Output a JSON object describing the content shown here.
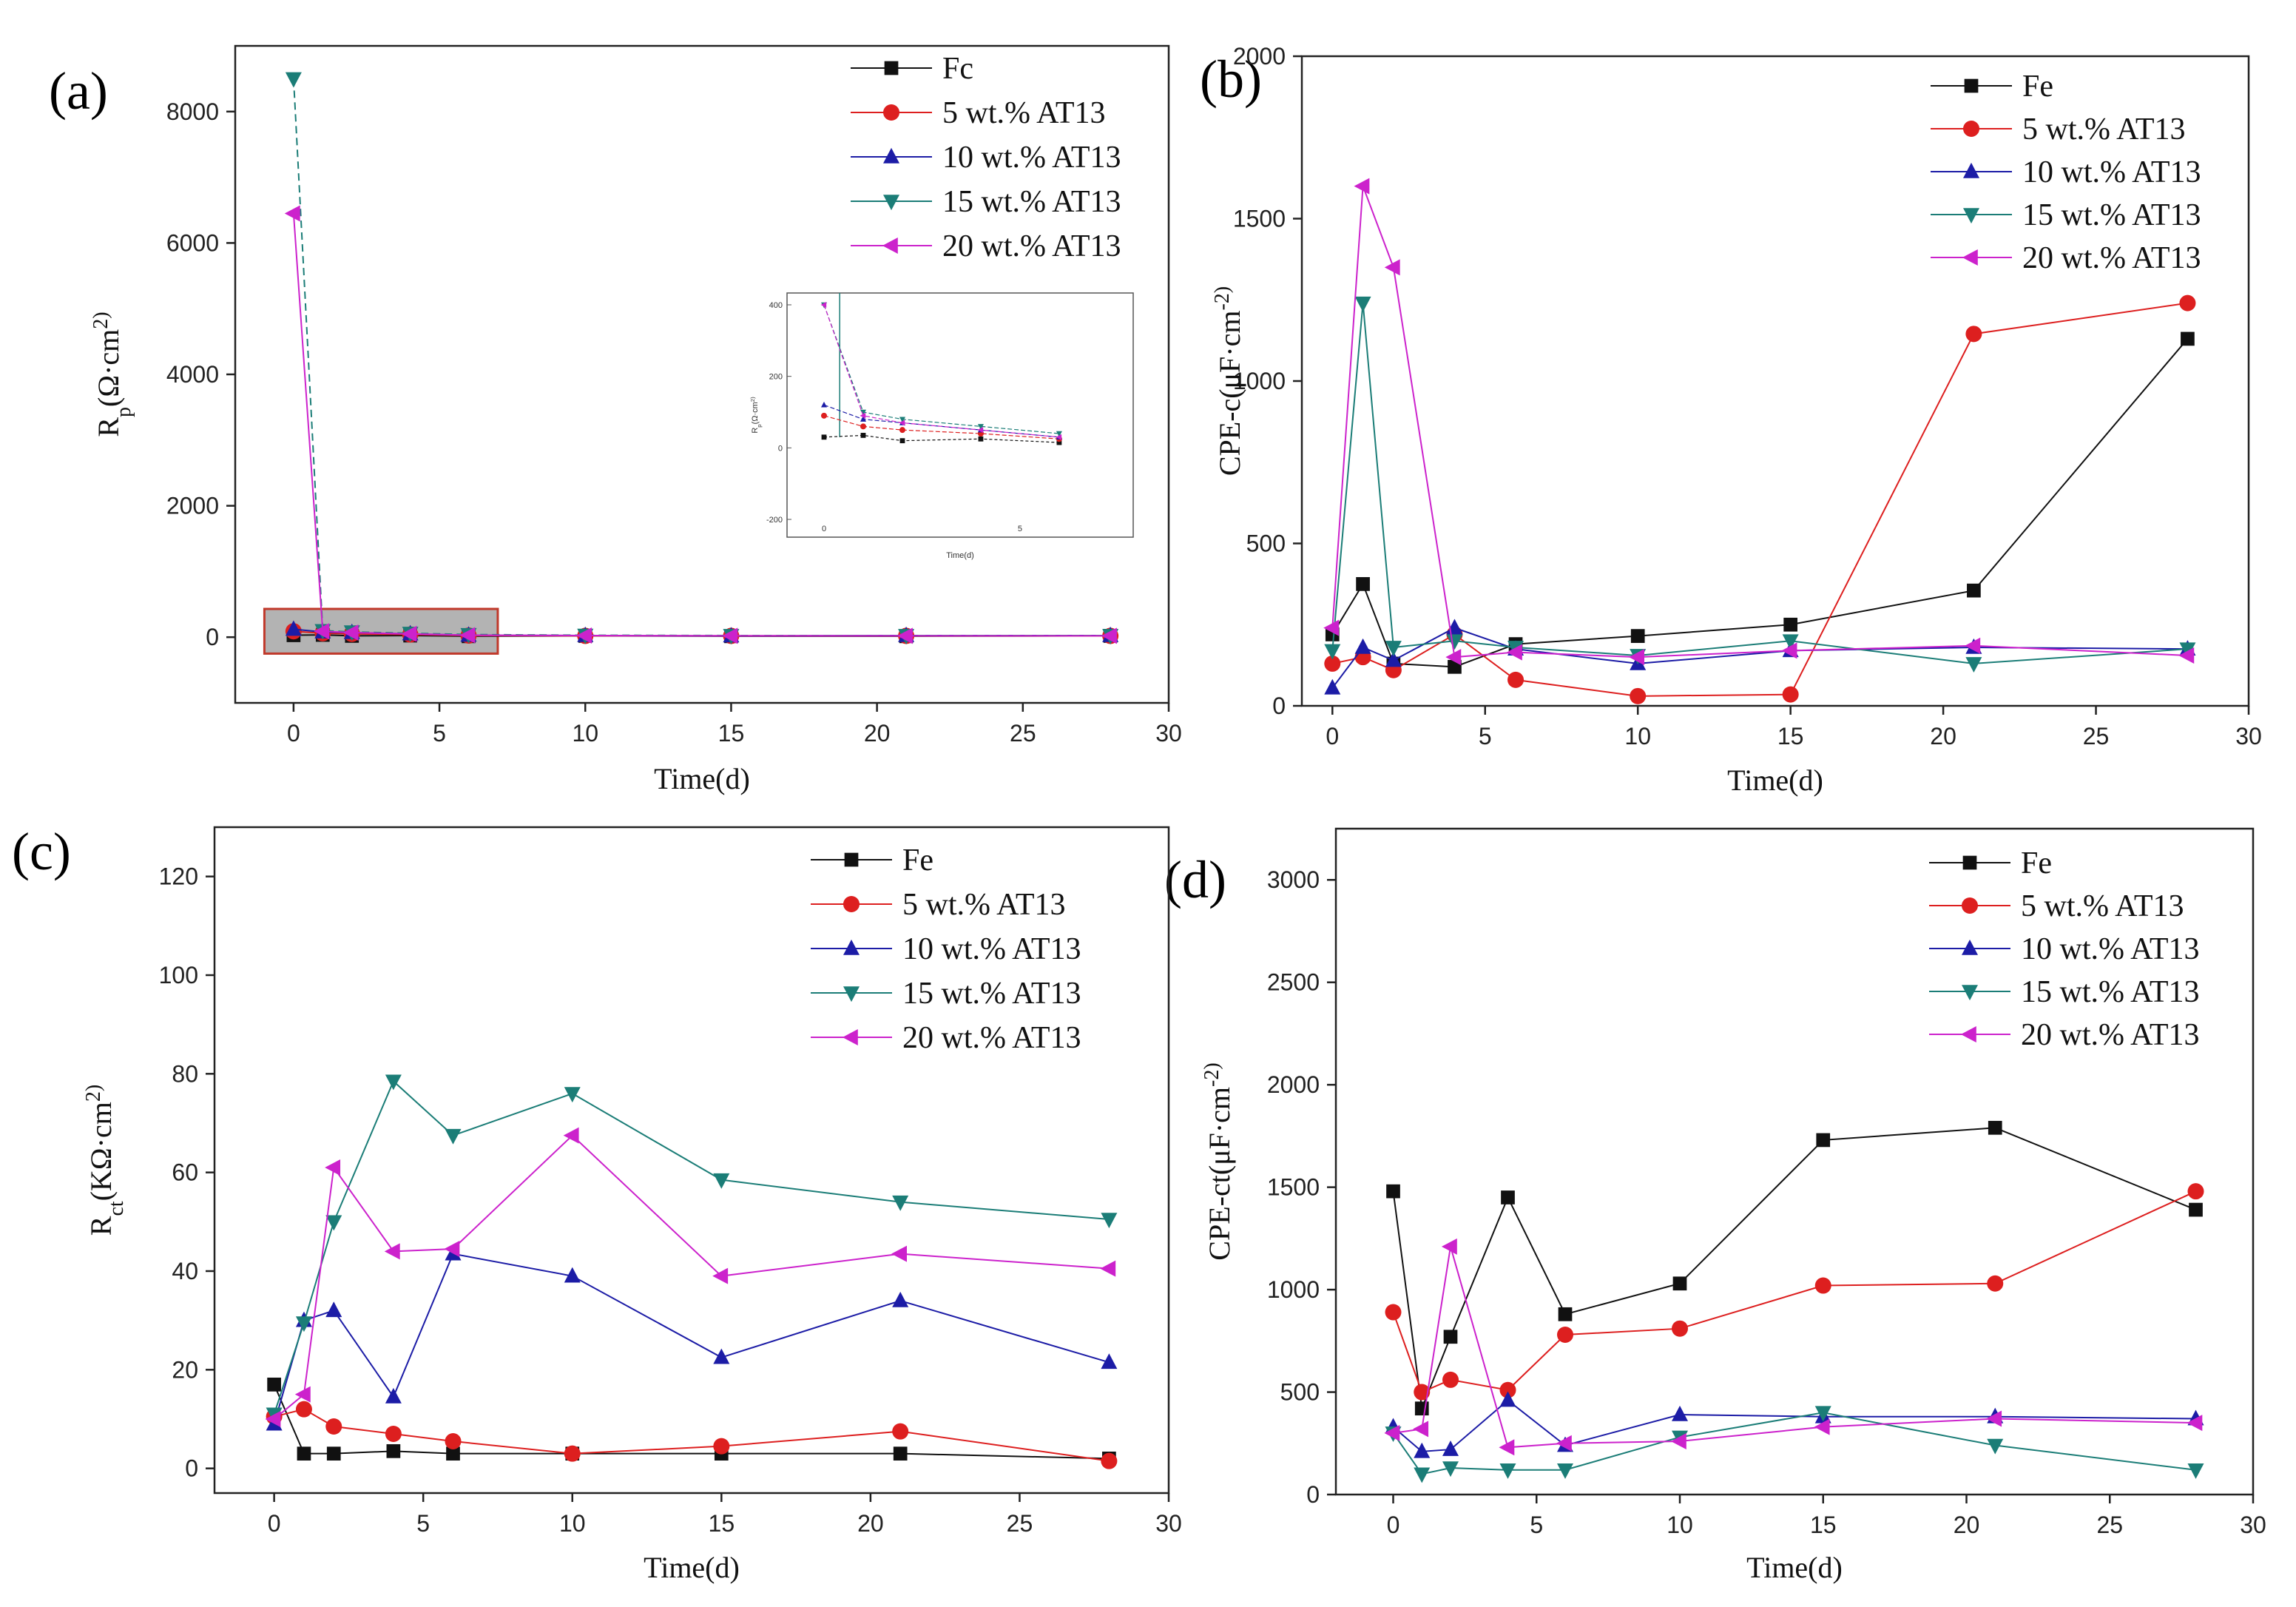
{
  "figure": {
    "panels": [
      {
        "letter": "(a)"
      },
      {
        "letter": "(b)"
      },
      {
        "letter": "(c)"
      },
      {
        "letter": "(d)"
      }
    ]
  },
  "colors": {
    "Fe": "#111111",
    "5": "#dd1f1f",
    "10": "#1c1ca6",
    "15": "#1b7d77",
    "20": "#cc22cc",
    "highlight_fill": "#9a9a9a",
    "highlight_stroke": "#c0392b"
  },
  "chart_data": [
    {
      "id": "a",
      "type": "line",
      "xlabel": "Time(d)",
      "ylabel": "R_p(Ω·cm^2)",
      "xlim": [
        -2,
        30
      ],
      "ylim": [
        -1000,
        9000
      ],
      "xticks": [
        0,
        5,
        10,
        15,
        20,
        25,
        30
      ],
      "yticks": [
        0,
        2000,
        4000,
        6000,
        8000
      ],
      "legend": [
        "Fc",
        "5 wt.% AT13",
        "10 wt.% AT13",
        "15 wt.% AT13",
        "20 wt.% AT13"
      ],
      "series": [
        {
          "key": "Fe",
          "marker": "square",
          "x": [
            0,
            1,
            2,
            4,
            6,
            10,
            15,
            21,
            28
          ],
          "y": [
            30,
            35,
            20,
            25,
            15,
            20,
            15,
            15,
            20
          ]
        },
        {
          "key": "5",
          "marker": "circle",
          "x": [
            0,
            1,
            2,
            4,
            6,
            10,
            15,
            21,
            28
          ],
          "y": [
            90,
            60,
            50,
            40,
            25,
            20,
            20,
            20,
            20
          ]
        },
        {
          "key": "10",
          "marker": "triangle-up",
          "x": [
            0,
            1,
            2,
            4,
            6,
            10,
            15,
            21,
            28
          ],
          "y": [
            120,
            80,
            70,
            50,
            30,
            25,
            20,
            25,
            25
          ]
        },
        {
          "key": "15",
          "marker": "triangle-down",
          "x": [
            0,
            1,
            2,
            4,
            6,
            10,
            15,
            21,
            28
          ],
          "y": [
            8500,
            100,
            80,
            60,
            40,
            30,
            25,
            25,
            25
          ]
        },
        {
          "key": "20",
          "marker": "triangle-left",
          "x": [
            0,
            1,
            2,
            4,
            6,
            10,
            15,
            21,
            28
          ],
          "y": [
            6450,
            90,
            70,
            50,
            30,
            25,
            20,
            20,
            20
          ]
        }
      ],
      "highlight_box": {
        "x": [
          -1,
          7
        ],
        "y": [
          -250,
          430
        ]
      },
      "inset": {
        "xlabel": "Time(d)",
        "ylabel": "R_p(Ω·cm^2)",
        "ytick_labels": [
          "400",
          "200",
          "0",
          "-200"
        ],
        "xtick_labels": [
          "0",
          "5"
        ]
      }
    },
    {
      "id": "b",
      "type": "line",
      "xlabel": "Time(d)",
      "ylabel": "CPE-c(μF·cm^-2)",
      "xlim": [
        -1,
        30
      ],
      "ylim": [
        0,
        2000
      ],
      "xticks": [
        0,
        5,
        10,
        15,
        20,
        25,
        30
      ],
      "yticks": [
        0,
        500,
        1000,
        1500,
        2000
      ],
      "legend": [
        "Fe",
        "5 wt.% AT13",
        "10 wt.% AT13",
        "15 wt.% AT13",
        "20 wt.% AT13"
      ],
      "series": [
        {
          "key": "Fe",
          "marker": "square",
          "x": [
            0,
            1,
            2,
            4,
            6,
            10,
            15,
            21,
            28
          ],
          "y": [
            220,
            375,
            130,
            120,
            190,
            215,
            250,
            355,
            1130
          ]
        },
        {
          "key": "5",
          "marker": "circle",
          "x": [
            0,
            1,
            2,
            4,
            6,
            10,
            15,
            21,
            28
          ],
          "y": [
            130,
            150,
            110,
            220,
            80,
            30,
            35,
            1145,
            1240
          ]
        },
        {
          "key": "10",
          "marker": "triangle-up",
          "x": [
            0,
            1,
            2,
            4,
            6,
            10,
            15,
            21,
            28
          ],
          "y": [
            55,
            180,
            140,
            240,
            175,
            130,
            170,
            180,
            175
          ]
        },
        {
          "key": "15",
          "marker": "triangle-down",
          "x": [
            0,
            1,
            2,
            4,
            6,
            10,
            15,
            21,
            28
          ],
          "y": [
            170,
            1240,
            180,
            200,
            180,
            155,
            200,
            130,
            175
          ]
        },
        {
          "key": "20",
          "marker": "triangle-left",
          "x": [
            0,
            1,
            2,
            4,
            6,
            10,
            15,
            21,
            28
          ],
          "y": [
            240,
            1600,
            1350,
            150,
            165,
            150,
            170,
            185,
            155
          ]
        }
      ]
    },
    {
      "id": "c",
      "type": "line",
      "xlabel": "Time(d)",
      "ylabel": "R_ct(KΩ·cm^2)",
      "xlim": [
        -2,
        30
      ],
      "ylim": [
        -5,
        130
      ],
      "xticks": [
        0,
        5,
        10,
        15,
        20,
        25,
        30
      ],
      "yticks": [
        0,
        20,
        40,
        60,
        80,
        100,
        120
      ],
      "legend": [
        "Fe",
        "5 wt.% AT13",
        "10 wt.% AT13",
        "15 wt.% AT13",
        "20 wt.% AT13"
      ],
      "series": [
        {
          "key": "Fe",
          "marker": "square",
          "x": [
            0,
            1,
            2,
            4,
            6,
            10,
            15,
            21,
            28
          ],
          "y": [
            17,
            3,
            3,
            3.5,
            3,
            3,
            3,
            3,
            2
          ]
        },
        {
          "key": "5",
          "marker": "circle",
          "x": [
            0,
            1,
            2,
            4,
            6,
            10,
            15,
            21,
            28
          ],
          "y": [
            10.5,
            12,
            8.5,
            7,
            5.5,
            3,
            4.5,
            7.5,
            1.5
          ]
        },
        {
          "key": "10",
          "marker": "triangle-up",
          "x": [
            0,
            1,
            2,
            4,
            6,
            10,
            15,
            21,
            28
          ],
          "y": [
            9,
            30,
            32,
            14.5,
            43.5,
            39,
            22.5,
            34,
            21.5
          ]
        },
        {
          "key": "15",
          "marker": "triangle-down",
          "x": [
            0,
            1,
            2,
            4,
            6,
            10,
            15,
            21,
            28
          ],
          "y": [
            11,
            29.5,
            50,
            78.5,
            67.5,
            76,
            58.5,
            54,
            50.5
          ]
        },
        {
          "key": "20",
          "marker": "triangle-left",
          "x": [
            0,
            1,
            2,
            4,
            6,
            10,
            15,
            21,
            28
          ],
          "y": [
            10,
            15,
            61,
            44,
            44.5,
            67.5,
            39,
            43.5,
            40.5
          ]
        }
      ]
    },
    {
      "id": "d",
      "type": "line",
      "xlabel": "Time(d)",
      "ylabel": "CPE-ct(μF·cm^-2)",
      "xlim": [
        -2,
        30
      ],
      "ylim": [
        0,
        3250
      ],
      "xticks": [
        0,
        5,
        10,
        15,
        20,
        25,
        30
      ],
      "yticks": [
        0,
        500,
        1000,
        1500,
        2000,
        2500,
        3000
      ],
      "legend": [
        "Fe",
        "5 wt.% AT13",
        "10 wt.% AT13",
        "15 wt.% AT13",
        "20 wt.% AT13"
      ],
      "series": [
        {
          "key": "Fe",
          "marker": "square",
          "x": [
            0,
            1,
            2,
            4,
            6,
            10,
            15,
            21,
            28
          ],
          "y": [
            1480,
            420,
            770,
            1450,
            880,
            1030,
            1730,
            1790,
            1390
          ]
        },
        {
          "key": "5",
          "marker": "circle",
          "x": [
            0,
            1,
            2,
            4,
            6,
            10,
            15,
            21,
            28
          ],
          "y": [
            890,
            500,
            560,
            510,
            780,
            810,
            1020,
            1030,
            1480
          ]
        },
        {
          "key": "10",
          "marker": "triangle-up",
          "x": [
            0,
            1,
            2,
            4,
            6,
            10,
            15,
            21,
            28
          ],
          "y": [
            330,
            210,
            220,
            460,
            240,
            390,
            380,
            380,
            370
          ]
        },
        {
          "key": "15",
          "marker": "triangle-down",
          "x": [
            0,
            1,
            2,
            4,
            6,
            10,
            15,
            21,
            28
          ],
          "y": [
            300,
            100,
            130,
            120,
            120,
            280,
            400,
            240,
            120
          ]
        },
        {
          "key": "20",
          "marker": "triangle-left",
          "x": [
            0,
            1,
            2,
            4,
            6,
            10,
            15,
            21,
            28
          ],
          "y": [
            300,
            320,
            1210,
            230,
            250,
            260,
            330,
            370,
            350
          ]
        }
      ]
    }
  ]
}
